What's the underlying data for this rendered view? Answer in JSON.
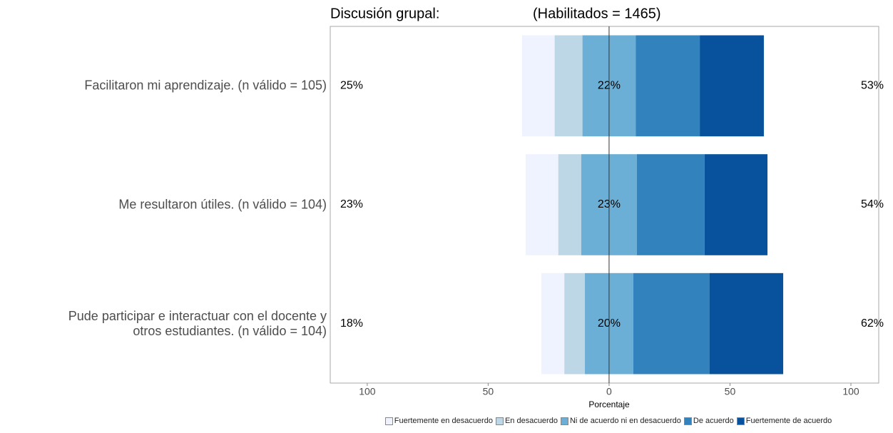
{
  "chart_data": {
    "type": "diverging_bar",
    "title": "Discusión grupal:",
    "subtitle": "(Habilitados = 1465)",
    "xlabel": "Porcentaje",
    "categories": [
      "Facilitaron mi aprendizaje. (n válido = 105)",
      "Me resultaron útiles. (n válido = 104)",
      "Pude participar e interactuar con el docente y\notros estudiantes. (n válido = 104)"
    ],
    "series": [
      {
        "name": "Fuertemente en desacuerdo",
        "color": "#eff3ff",
        "values": [
          13.5,
          13.5,
          9.5
        ]
      },
      {
        "name": "En desacuerdo",
        "color": "#bdd7e7",
        "values": [
          11.5,
          9.5,
          8.5
        ]
      },
      {
        "name": "Ni de acuerdo ni en desacuerdo",
        "color": "#6baed6",
        "values": [
          22,
          23,
          20
        ]
      },
      {
        "name": "De acuerdo",
        "color": "#3182bd",
        "values": [
          26.5,
          28,
          31.5
        ]
      },
      {
        "name": "Fuertemente de acuerdo",
        "color": "#08519c",
        "values": [
          26.5,
          26,
          30.5
        ]
      }
    ],
    "left_labels": [
      "25%",
      "23%",
      "18%"
    ],
    "center_labels": [
      "22%",
      "23%",
      "20%"
    ],
    "right_labels": [
      "53%",
      "54%",
      "62%"
    ],
    "xlim": [
      -115.3,
      111.5
    ],
    "xticks": [
      {
        "value": -100,
        "label": "100"
      },
      {
        "value": -50,
        "label": "50"
      },
      0,
      50,
      100
    ]
  }
}
